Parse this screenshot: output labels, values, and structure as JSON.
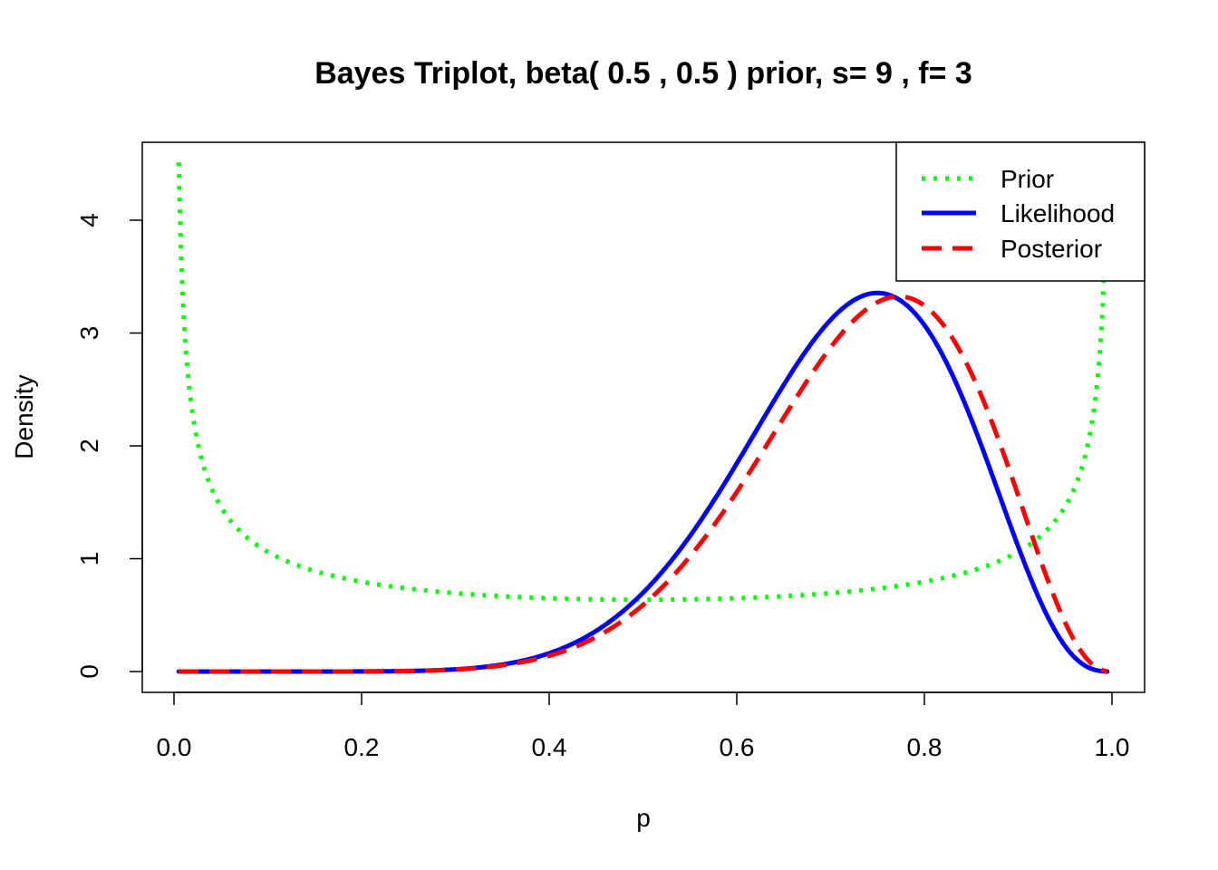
{
  "chart_data": {
    "type": "line",
    "title": "Bayes Triplot, beta( 0.5 , 0.5 ) prior, s= 9 , f= 3",
    "xlabel": "p",
    "ylabel": "Density",
    "xlim": [
      0,
      1
    ],
    "ylim": [
      0,
      4.5
    ],
    "x_ticks": [
      0.0,
      0.2,
      0.4,
      0.6,
      0.8,
      1.0
    ],
    "x_tick_labels": [
      "0.0",
      "0.2",
      "0.4",
      "0.6",
      "0.8",
      "1.0"
    ],
    "y_ticks": [
      0,
      1,
      2,
      3,
      4
    ],
    "y_tick_labels": [
      "0",
      "1",
      "2",
      "3",
      "4"
    ],
    "grid": false,
    "legend_position": "top-right",
    "prior": {
      "a": 0.5,
      "b": 0.5
    },
    "successes": 9,
    "failures": 3,
    "series": [
      {
        "name": "Prior",
        "color": "#00FF00",
        "dash": "dotted",
        "line_width": 3,
        "x": [
          0.005,
          0.01,
          0.02,
          0.05,
          0.1,
          0.2,
          0.3,
          0.4,
          0.5,
          0.6,
          0.7,
          0.8,
          0.9,
          0.95,
          0.98,
          0.99,
          0.995
        ],
        "y": [
          4.5,
          3.2,
          2.27,
          1.46,
          1.06,
          0.8,
          0.69,
          0.65,
          0.64,
          0.65,
          0.69,
          0.8,
          1.06,
          1.46,
          2.27,
          3.2,
          4.5
        ]
      },
      {
        "name": "Likelihood",
        "color": "#0000FF",
        "dash": "solid",
        "line_width": 3,
        "x": [
          0.005,
          0.1,
          0.2,
          0.3,
          0.4,
          0.5,
          0.6,
          0.65,
          0.7,
          0.75,
          0.8,
          0.85,
          0.9,
          0.95,
          0.995
        ],
        "y": [
          0.0,
          0.0,
          0.001,
          0.03,
          0.17,
          0.63,
          1.81,
          2.57,
          3.2,
          3.35,
          3.07,
          2.24,
          1.11,
          0.28,
          0.0
        ]
      },
      {
        "name": "Posterior",
        "color": "#FF0000",
        "dash": "dashed",
        "line_width": 3,
        "x": [
          0.005,
          0.1,
          0.2,
          0.3,
          0.4,
          0.5,
          0.6,
          0.7,
          0.75,
          0.77,
          0.8,
          0.85,
          0.9,
          0.95,
          0.995
        ],
        "y": [
          0.0,
          0.0,
          0.0,
          0.02,
          0.13,
          0.54,
          1.62,
          3.02,
          3.3,
          3.33,
          3.2,
          2.6,
          1.56,
          0.55,
          0.0
        ]
      }
    ]
  }
}
